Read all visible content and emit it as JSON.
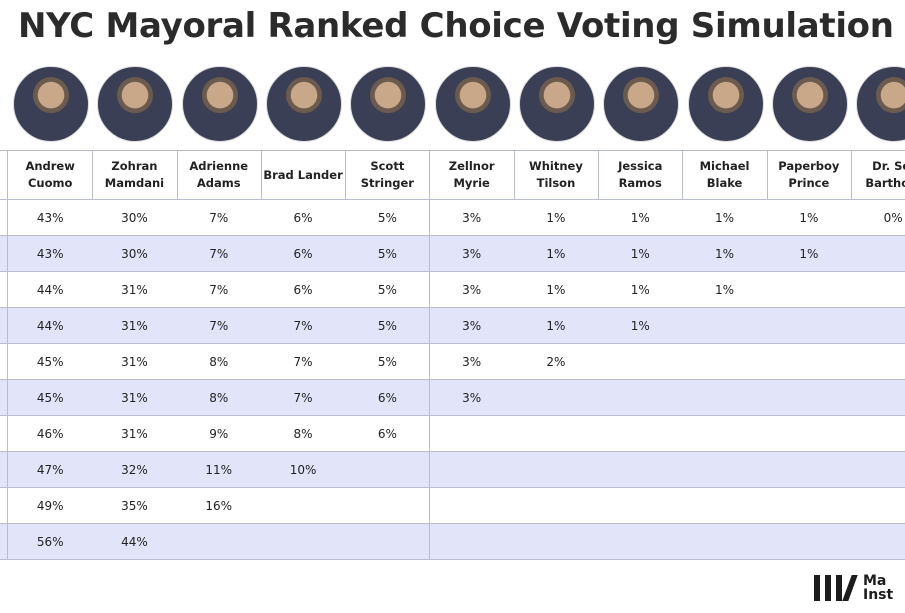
{
  "title": "NYC Mayoral Ranked Choice Voting Simulation",
  "table": {
    "headers": [
      [
        "Andrew",
        "Cuomo"
      ],
      [
        "Zohran",
        "Mamdani"
      ],
      [
        "Adrienne",
        "Adams"
      ],
      [
        "Brad Lander"
      ],
      [
        "Scott",
        "Stringer"
      ],
      [
        "Zellnor",
        "Myrie"
      ],
      [
        "Whitney",
        "Tilson"
      ],
      [
        "Jessica",
        "Ramos"
      ],
      [
        "Michael",
        "Blake"
      ],
      [
        "Paperboy",
        "Prince"
      ],
      [
        "Dr. Sel",
        "Bartholo"
      ]
    ],
    "rows": [
      [
        "43%",
        "30%",
        "7%",
        "6%",
        "5%",
        "3%",
        "1%",
        "1%",
        "1%",
        "1%",
        "0%"
      ],
      [
        "43%",
        "30%",
        "7%",
        "6%",
        "5%",
        "3%",
        "1%",
        "1%",
        "1%",
        "1%"
      ],
      [
        "44%",
        "31%",
        "7%",
        "6%",
        "5%",
        "3%",
        "1%",
        "1%",
        "1%"
      ],
      [
        "44%",
        "31%",
        "7%",
        "7%",
        "5%",
        "3%",
        "1%",
        "1%"
      ],
      [
        "45%",
        "31%",
        "8%",
        "7%",
        "5%",
        "3%",
        "2%"
      ],
      [
        "45%",
        "31%",
        "8%",
        "7%",
        "6%",
        "3%"
      ],
      [
        "46%",
        "31%",
        "9%",
        "8%",
        "6%"
      ],
      [
        "47%",
        "32%",
        "11%",
        "10%"
      ],
      [
        "49%",
        "35%",
        "16%"
      ],
      [
        "56%",
        "44%"
      ]
    ]
  },
  "logo": [
    "Ma",
    "Inst"
  ]
}
